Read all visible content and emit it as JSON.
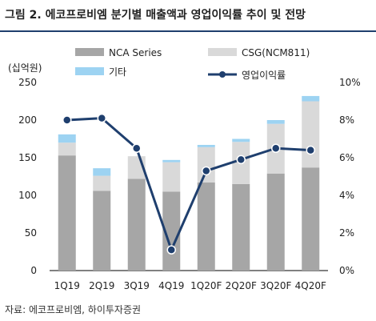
{
  "header": {
    "title": "그림 2. 에코프로비엠 분기별 매출액과 영업이익률 추이 및 전망"
  },
  "footer": {
    "source": "자료: 에코프로비엠, 하이투자증권"
  },
  "colors": {
    "nca": "#a6a6a6",
    "csg": "#d9d9d9",
    "etc": "#9dd3f2",
    "margin": "#1f3f6e",
    "rule": "#1f3f6e"
  },
  "chart_data": {
    "type": "bar",
    "stacked": true,
    "categories": [
      "1Q19",
      "2Q19",
      "3Q19",
      "4Q19",
      "1Q20F",
      "2Q20F",
      "3Q20F",
      "4Q20F"
    ],
    "series": [
      {
        "name": "NCA Series",
        "values": [
          153,
          106,
          122,
          105,
          117,
          115,
          129,
          137
        ]
      },
      {
        "name": "CSG(NCM811)",
        "values": [
          17,
          20,
          30,
          39,
          47,
          56,
          66,
          88
        ]
      },
      {
        "name": "기타",
        "values": [
          11,
          10,
          0,
          3,
          3,
          4,
          5,
          7
        ]
      }
    ],
    "line_series": {
      "name": "영업이익률",
      "axis": "right",
      "values": [
        8.0,
        8.1,
        6.5,
        1.1,
        5.3,
        5.9,
        6.5,
        6.4
      ]
    },
    "y_left": {
      "label": "(십억원)",
      "ticks": [
        "0",
        "50",
        "100",
        "150",
        "200",
        "250"
      ],
      "ylim": [
        0,
        250
      ]
    },
    "y_right": {
      "ticks": [
        "0%",
        "2%",
        "4%",
        "6%",
        "8%",
        "10%"
      ],
      "ylim": [
        0,
        10
      ]
    },
    "legend": {
      "placement": "top"
    },
    "grid": false
  }
}
